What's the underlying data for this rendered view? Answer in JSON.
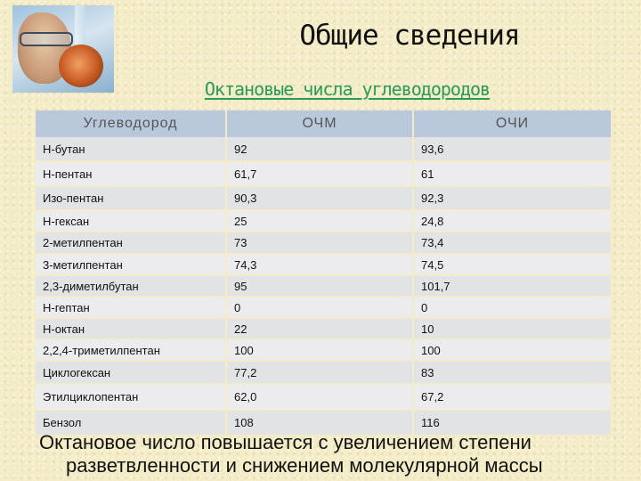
{
  "page": {
    "title": "Общие сведения",
    "subtitle": "Октановые числа углеводородов"
  },
  "table": {
    "headers": [
      "Углеводород",
      "ОЧМ",
      "ОЧИ"
    ],
    "rows": [
      {
        "name": "Н-бутан",
        "ochm": "92",
        "ochi": "93,6"
      },
      {
        "name": "Н-пентан",
        "ochm": "61,7",
        "ochi": "61"
      },
      {
        "name": "Изо-пентан",
        "ochm": "90,3",
        "ochi": "92,3"
      },
      {
        "name": "Н-гексан",
        "ochm": "25",
        "ochi": "24,8"
      },
      {
        "name": "2-метилпентан",
        "ochm": "73",
        "ochi": "73,4"
      },
      {
        "name": "3-метилпентан",
        "ochm": "74,3",
        "ochi": "74,5"
      },
      {
        "name": "2,3-диметилбутан",
        "ochm": "95",
        "ochi": "101,7"
      },
      {
        "name": "Н-гептан",
        "ochm": "0",
        "ochi": "0"
      },
      {
        "name": "Н-октан",
        "ochm": "22",
        "ochi": "10"
      },
      {
        "name": "2,2,4-триметилпентан",
        "ochm": "100",
        "ochi": "100"
      },
      {
        "name": "Циклогексан",
        "ochm": "77,2",
        "ochi": "83"
      },
      {
        "name": "Этилциклопентан",
        "ochm": "62,0",
        "ochi": "67,2"
      },
      {
        "name": "Бензол",
        "ochm": "108",
        "ochi": "116"
      }
    ]
  },
  "note": {
    "line1": "Октановое число повышается с увеличением степени",
    "line2": "разветвленности и снижением молекулярной массы"
  },
  "colors": {
    "background": "#f3ecc6",
    "subtitle": "#2a9a57",
    "header_fill": "#b9c9db"
  }
}
